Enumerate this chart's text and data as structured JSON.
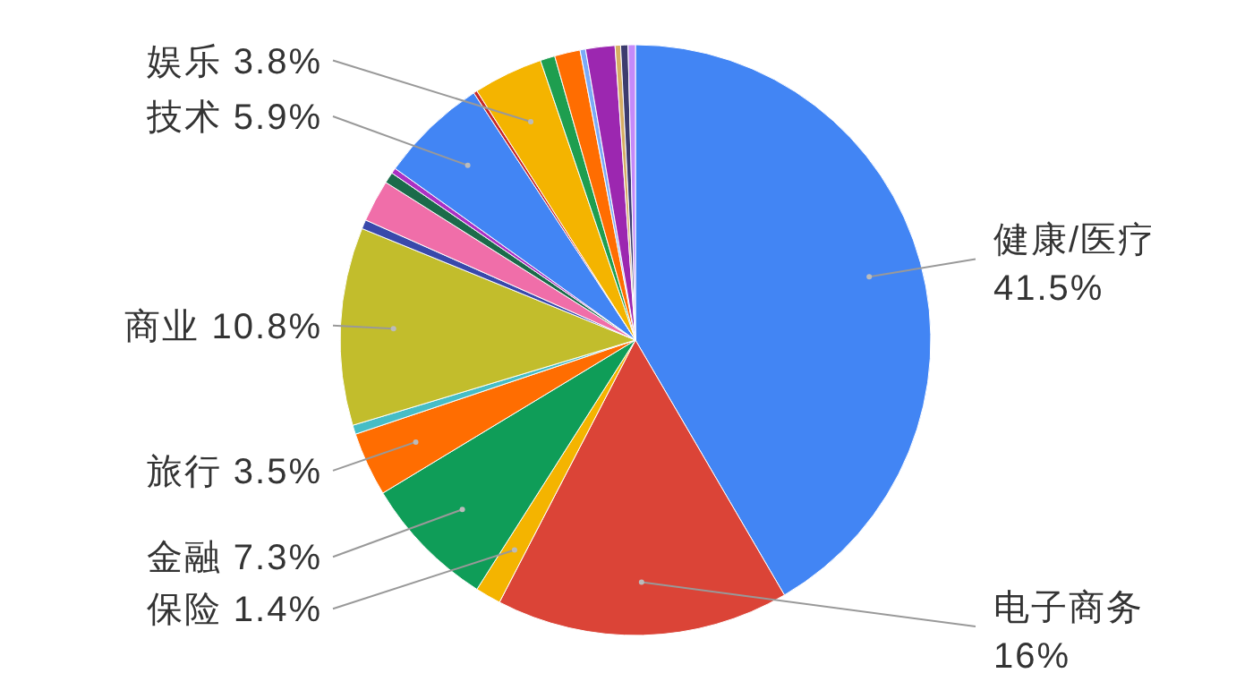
{
  "chart_data": {
    "type": "pie",
    "categories": [
      "健康/医疗",
      "电子商务",
      "保险",
      "金融",
      "旅行",
      null,
      "商业",
      null,
      null,
      null,
      null,
      "技术",
      null,
      "娱乐",
      null,
      null,
      null,
      null,
      null,
      null,
      null
    ],
    "values": [
      41.5,
      16,
      1.4,
      7.3,
      3.5,
      0.5,
      10.8,
      0.5,
      2.3,
      0.6,
      0.3,
      5.9,
      0.2,
      3.8,
      0.8,
      1.4,
      0.3,
      1.6,
      0.3,
      0.4,
      0.4
    ],
    "value_labels": [
      "41.5%",
      "16%",
      "1.4%",
      "7.3%",
      "3.5%",
      null,
      "10.8%",
      null,
      null,
      null,
      null,
      "5.9%",
      null,
      "3.8%",
      null,
      null,
      null,
      null,
      null,
      null,
      null
    ],
    "colors": [
      "#4285f4",
      "#db4437",
      "#f4b400",
      "#0f9d58",
      "#ff6d01",
      "#46bdc6",
      "#c2bd2c",
      "#3949ab",
      "#f06ea9",
      "#1b6b4a",
      "#ab30c4",
      "#4285f4",
      "#c62828",
      "#f4b400",
      "#1e9e4f",
      "#ff6d01",
      "#7baaf7",
      "#9c27b0",
      "#d6ae64",
      "#3c3c6e",
      "#c58af9"
    ]
  }
}
